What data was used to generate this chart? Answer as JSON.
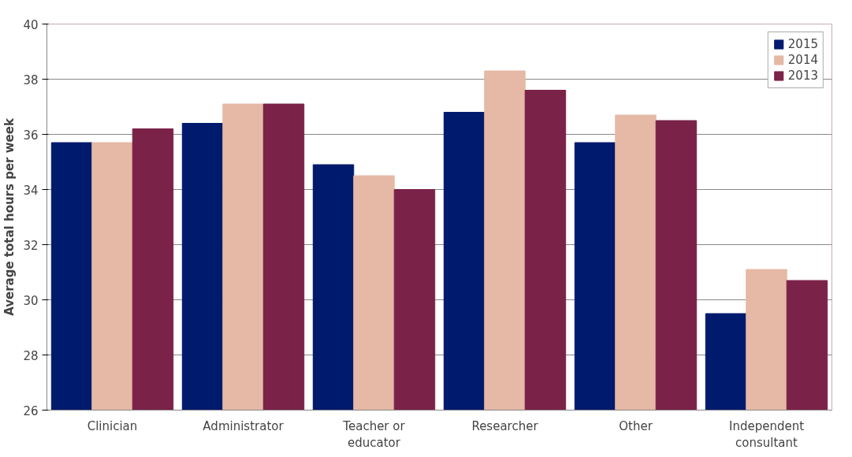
{
  "chart_data": {
    "type": "bar",
    "ylabel": "Average total hours per week",
    "categories": [
      "Clinician",
      "Administrator",
      "Teacher or\neducator",
      "Researcher",
      "Other",
      "Independent\nconsultant"
    ],
    "series": [
      {
        "name": "2015",
        "color": "#001a6e",
        "values": [
          35.7,
          36.4,
          34.9,
          36.8,
          35.7,
          29.5
        ]
      },
      {
        "name": "2014",
        "color": "#e5b9a6",
        "values": [
          35.7,
          37.1,
          34.5,
          38.3,
          36.7,
          31.1
        ]
      },
      {
        "name": "2013",
        "color": "#7b2249",
        "values": [
          36.2,
          37.1,
          34.0,
          37.6,
          36.5,
          30.7
        ]
      }
    ],
    "ylim": [
      26,
      40
    ],
    "yticks": [
      26,
      28,
      30,
      32,
      34,
      36,
      38,
      40
    ],
    "grid": "y",
    "legend": "top right"
  }
}
